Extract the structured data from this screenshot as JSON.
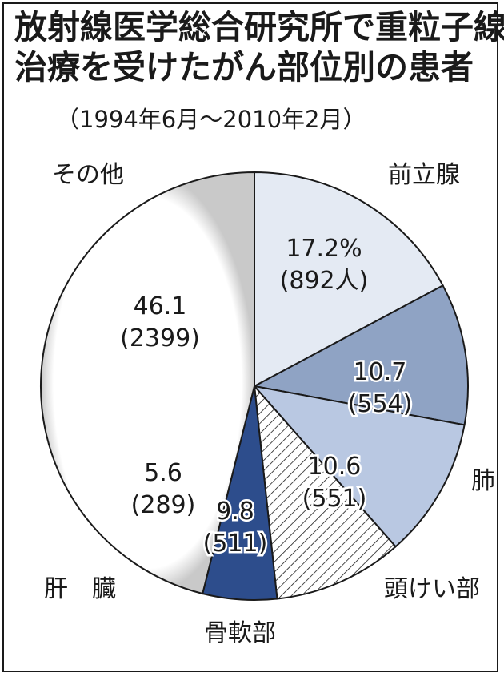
{
  "title_lines": [
    "放射線医学総合研究所で重粒子線",
    "治療を受けたがん部位別の患者"
  ],
  "subtitle": "（1994年6月～2010年2月）",
  "chart_data": {
    "type": "pie",
    "title": "放射線医学総合研究所で重粒子線治療を受けたがん部位別の患者",
    "subtitle": "（1994年6月～2010年2月）",
    "unit_percent": "%",
    "unit_count": "人",
    "slices": [
      {
        "label": "前立腺",
        "percent": 17.2,
        "count": 892,
        "percent_text": "17.2%",
        "count_text": "(892人)",
        "color": "#e4eaf3"
      },
      {
        "label": "肺",
        "percent": 10.7,
        "count": 554,
        "percent_text": "10.7",
        "count_text": "(554)",
        "color": "#8fa3c4"
      },
      {
        "label": "頭けい部",
        "percent": 10.6,
        "count": 551,
        "percent_text": "10.6",
        "count_text": "(551)",
        "color": "#b9c8e2"
      },
      {
        "label": "骨軟部",
        "percent": 9.8,
        "count": 511,
        "percent_text": "9.8",
        "count_text": "(511)",
        "color": "hatch"
      },
      {
        "label": "肝　臓",
        "percent": 5.6,
        "count": 289,
        "percent_text": "5.6",
        "count_text": "(289)",
        "color": "#2d4d8c"
      },
      {
        "label": "その他",
        "percent": 46.1,
        "count": 2399,
        "percent_text": "46.1",
        "count_text": "(2399)",
        "color": "#ffffff"
      }
    ]
  }
}
